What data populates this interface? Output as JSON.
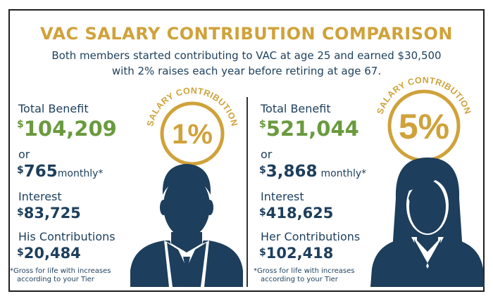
{
  "title": "VAC SALARY CONTRIBUTION COMPARISON",
  "subtitle_line1": "Both members started contributing to VAC at age 25 and earned $30,500",
  "subtitle_line2": "with 2% raises each year before retiring at age 67.",
  "badge_label": "SALARY CONTRIBUTION",
  "left": {
    "rate": "1%",
    "total_benefit_label": "Total Benefit",
    "currency": "$",
    "total_benefit_value": "104,209",
    "or_label": "or",
    "monthly_value": "765",
    "monthly_label": "monthly*",
    "interest_label": "Interest",
    "interest_value": "83,725",
    "contrib_label": "His Contributions",
    "contrib_value": "20,484",
    "note_line1": "*Gross for life with increases",
    "note_line2": "according to your Tier"
  },
  "right": {
    "rate": "5%",
    "total_benefit_label": "Total Benefit",
    "currency": "$",
    "total_benefit_value": "521,044",
    "or_label": "or",
    "monthly_value": "3,868",
    "monthly_label": "monthly*",
    "interest_label": "Interest",
    "interest_value": "418,625",
    "contrib_label": "Her Contributions",
    "contrib_value": "102,418",
    "note_line1": "*Gross for life with increases",
    "note_line2": "according to your Tier"
  },
  "colors": {
    "gold": "#cfa23a",
    "navy": "#1d3e5c",
    "green": "#6a9a3e"
  },
  "icons": {
    "left_figure": "man-avatar-icon",
    "right_figure": "woman-avatar-icon"
  }
}
